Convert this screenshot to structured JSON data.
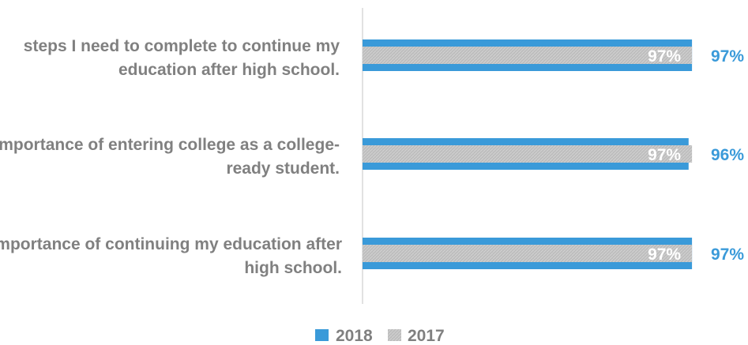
{
  "chart_data": {
    "type": "bar",
    "orientation": "horizontal",
    "categories": [
      [
        "steps I need to complete to continue my",
        "education after high school."
      ],
      [
        "importance of entering college as a college-",
        "ready student."
      ],
      [
        "importance of continuing my education after",
        "high school."
      ]
    ],
    "series": [
      {
        "name": "2018",
        "color": "#3a9ad9",
        "values": [
          97,
          96,
          97
        ],
        "labels": [
          "97%",
          "96%",
          "97%"
        ]
      },
      {
        "name": "2017",
        "color": "#bfbfbf",
        "values": [
          97,
          97,
          97
        ],
        "labels": [
          "97%",
          "97%",
          "97%"
        ]
      }
    ],
    "xlim": [
      0,
      100
    ],
    "grid": false,
    "legend": "bottom",
    "label_color": "#808080"
  }
}
